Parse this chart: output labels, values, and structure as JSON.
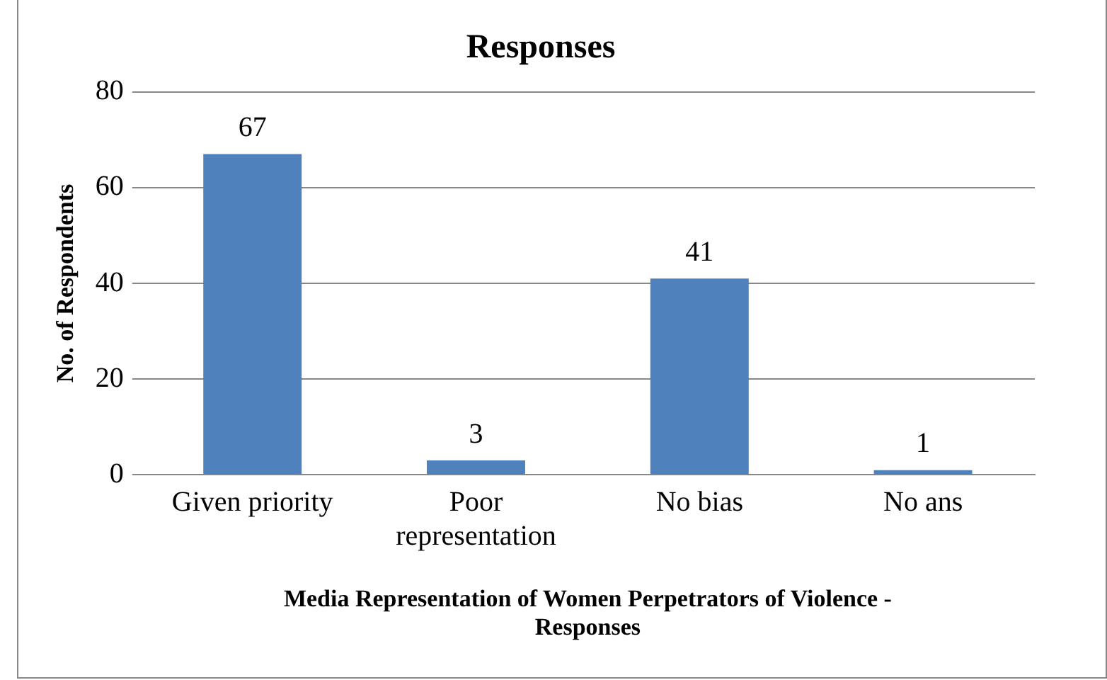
{
  "chart_data": {
    "type": "bar",
    "title": "Responses",
    "categories": [
      "Given priority",
      "Poor representation",
      "No bias",
      "No ans"
    ],
    "values": [
      67,
      3,
      41,
      1
    ],
    "color": "#4f81bd",
    "xlabel": "Media Representation of Women Perpetrators of Violence - Responses",
    "ylabel": "No. of Respondents",
    "ylim": [
      0,
      80
    ],
    "yticks": [
      0,
      20,
      40,
      60,
      80
    ],
    "grid": "y",
    "data_labels": true,
    "legend": false
  }
}
